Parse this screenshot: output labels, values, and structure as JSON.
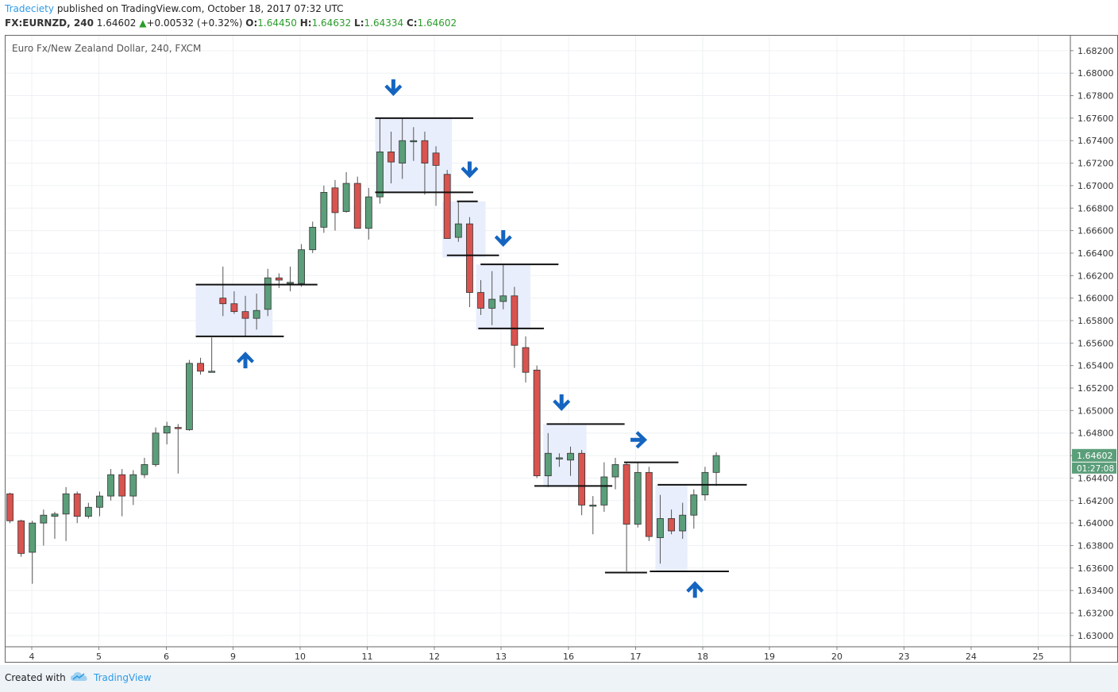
{
  "header": {
    "author": "Tradeciety",
    "published": "published on TradingView.com, October 18, 2017 07:32 UTC",
    "symbol": "FX:EURNZD, 240",
    "last": "1.64602",
    "change": "+0.00532 (+0.32%)",
    "o_label": "O:",
    "o": "1.64450",
    "h_label": "H:",
    "h": "1.64632",
    "l_label": "L:",
    "l": "1.64334",
    "c_label": "C:",
    "c": "1.64602"
  },
  "footer": {
    "created_with": "Created with",
    "brand": "TradingView",
    "logo_icon": "tradingview-cloud-icon"
  },
  "colors": {
    "up": "#5b9e7a",
    "down": "#d9534f",
    "arrow": "#1565c0",
    "zone": "#e8eefc",
    "price_tag": "#5b9e7a"
  },
  "chart_data": {
    "type": "candlestick",
    "title": "Euro Fx/New Zealand Dollar, 240, FXCM",
    "ylim": [
      1.629,
      1.6834
    ],
    "y_ticks": [
      "1.68200",
      "1.68000",
      "1.67800",
      "1.67600",
      "1.67400",
      "1.67200",
      "1.67000",
      "1.66800",
      "1.66600",
      "1.66400",
      "1.66200",
      "1.66000",
      "1.65800",
      "1.65600",
      "1.65400",
      "1.65200",
      "1.65000",
      "1.64800",
      "1.64600",
      "1.64400",
      "1.64200",
      "1.64000",
      "1.63800",
      "1.63600",
      "1.63400",
      "1.63200",
      "1.63000"
    ],
    "x_ticks": [
      "4",
      "5",
      "6",
      "9",
      "10",
      "11",
      "12",
      "13",
      "16",
      "17",
      "18",
      "19",
      "20",
      "23",
      "24",
      "25"
    ],
    "last_price": "1.64602",
    "countdown": "01:27:08",
    "candles": [
      {
        "o": 1.6426,
        "h": 1.6427,
        "l": 1.64,
        "c": 1.6402
      },
      {
        "o": 1.6402,
        "h": 1.6403,
        "l": 1.637,
        "c": 1.6373
      },
      {
        "o": 1.6374,
        "h": 1.6402,
        "l": 1.6346,
        "c": 1.64
      },
      {
        "o": 1.64,
        "h": 1.6412,
        "l": 1.638,
        "c": 1.6407
      },
      {
        "o": 1.6406,
        "h": 1.641,
        "l": 1.6386,
        "c": 1.6408
      },
      {
        "o": 1.6408,
        "h": 1.6432,
        "l": 1.6384,
        "c": 1.6426
      },
      {
        "o": 1.6426,
        "h": 1.6428,
        "l": 1.64,
        "c": 1.6406
      },
      {
        "o": 1.6406,
        "h": 1.6418,
        "l": 1.6404,
        "c": 1.6414
      },
      {
        "o": 1.6414,
        "h": 1.6428,
        "l": 1.6406,
        "c": 1.6424
      },
      {
        "o": 1.6424,
        "h": 1.6448,
        "l": 1.642,
        "c": 1.6443
      },
      {
        "o": 1.6443,
        "h": 1.6448,
        "l": 1.6406,
        "c": 1.6424
      },
      {
        "o": 1.6424,
        "h": 1.6447,
        "l": 1.6416,
        "c": 1.6443
      },
      {
        "o": 1.6443,
        "h": 1.6458,
        "l": 1.644,
        "c": 1.6452
      },
      {
        "o": 1.6452,
        "h": 1.6485,
        "l": 1.645,
        "c": 1.648
      },
      {
        "o": 1.648,
        "h": 1.649,
        "l": 1.647,
        "c": 1.6486
      },
      {
        "o": 1.6485,
        "h": 1.6488,
        "l": 1.6444,
        "c": 1.6484
      },
      {
        "o": 1.6483,
        "h": 1.6545,
        "l": 1.6482,
        "c": 1.6542
      },
      {
        "o": 1.6542,
        "h": 1.6547,
        "l": 1.6532,
        "c": 1.6535
      },
      {
        "o": 1.6535,
        "h": 1.6565,
        "l": 1.6535,
        "c": 1.6535
      },
      {
        "o": 1.66,
        "h": 1.6628,
        "l": 1.6584,
        "c": 1.6595
      },
      {
        "o": 1.6595,
        "h": 1.6606,
        "l": 1.6586,
        "c": 1.6588
      },
      {
        "o": 1.6588,
        "h": 1.6602,
        "l": 1.6566,
        "c": 1.6582
      },
      {
        "o": 1.6582,
        "h": 1.6604,
        "l": 1.6572,
        "c": 1.6589
      },
      {
        "o": 1.659,
        "h": 1.6626,
        "l": 1.6584,
        "c": 1.6618
      },
      {
        "o": 1.6618,
        "h": 1.6622,
        "l": 1.6609,
        "c": 1.6616
      },
      {
        "o": 1.6614,
        "h": 1.6628,
        "l": 1.6606,
        "c": 1.6614
      },
      {
        "o": 1.6613,
        "h": 1.6648,
        "l": 1.661,
        "c": 1.6643
      },
      {
        "o": 1.6643,
        "h": 1.6668,
        "l": 1.664,
        "c": 1.6663
      },
      {
        "o": 1.6663,
        "h": 1.67,
        "l": 1.6658,
        "c": 1.6694
      },
      {
        "o": 1.6698,
        "h": 1.6705,
        "l": 1.666,
        "c": 1.6676
      },
      {
        "o": 1.6677,
        "h": 1.6712,
        "l": 1.6676,
        "c": 1.6702
      },
      {
        "o": 1.6702,
        "h": 1.6708,
        "l": 1.6667,
        "c": 1.6662
      },
      {
        "o": 1.6662,
        "h": 1.6698,
        "l": 1.6652,
        "c": 1.669
      },
      {
        "o": 1.669,
        "h": 1.676,
        "l": 1.6684,
        "c": 1.673
      },
      {
        "o": 1.673,
        "h": 1.6748,
        "l": 1.6702,
        "c": 1.6721
      },
      {
        "o": 1.672,
        "h": 1.676,
        "l": 1.6706,
        "c": 1.674
      },
      {
        "o": 1.674,
        "h": 1.6752,
        "l": 1.6722,
        "c": 1.674
      },
      {
        "o": 1.674,
        "h": 1.6748,
        "l": 1.6692,
        "c": 1.672
      },
      {
        "o": 1.6729,
        "h": 1.6735,
        "l": 1.6682,
        "c": 1.6718
      },
      {
        "o": 1.671,
        "h": 1.6714,
        "l": 1.6654,
        "c": 1.6653
      },
      {
        "o": 1.6654,
        "h": 1.6686,
        "l": 1.665,
        "c": 1.6666
      },
      {
        "o": 1.6666,
        "h": 1.6672,
        "l": 1.6592,
        "c": 1.6605
      },
      {
        "o": 1.6605,
        "h": 1.6616,
        "l": 1.6585,
        "c": 1.6591
      },
      {
        "o": 1.6591,
        "h": 1.6624,
        "l": 1.6576,
        "c": 1.6599
      },
      {
        "o": 1.6597,
        "h": 1.663,
        "l": 1.659,
        "c": 1.6602
      },
      {
        "o": 1.6602,
        "h": 1.661,
        "l": 1.6538,
        "c": 1.6558
      },
      {
        "o": 1.6556,
        "h": 1.6566,
        "l": 1.6525,
        "c": 1.6534
      },
      {
        "o": 1.6536,
        "h": 1.654,
        "l": 1.644,
        "c": 1.6442
      },
      {
        "o": 1.6442,
        "h": 1.648,
        "l": 1.6432,
        "c": 1.6462
      },
      {
        "o": 1.6457,
        "h": 1.6462,
        "l": 1.645,
        "c": 1.6458
      },
      {
        "o": 1.6456,
        "h": 1.6468,
        "l": 1.6442,
        "c": 1.6462
      },
      {
        "o": 1.6462,
        "h": 1.6465,
        "l": 1.6407,
        "c": 1.6416
      },
      {
        "o": 1.6416,
        "h": 1.6424,
        "l": 1.639,
        "c": 1.6416
      },
      {
        "o": 1.6416,
        "h": 1.6454,
        "l": 1.641,
        "c": 1.6441
      },
      {
        "o": 1.6441,
        "h": 1.6458,
        "l": 1.643,
        "c": 1.6452
      },
      {
        "o": 1.6452,
        "h": 1.6454,
        "l": 1.6357,
        "c": 1.6399
      },
      {
        "o": 1.6399,
        "h": 1.6454,
        "l": 1.6396,
        "c": 1.6445
      },
      {
        "o": 1.6445,
        "h": 1.645,
        "l": 1.6384,
        "c": 1.6388
      },
      {
        "o": 1.6387,
        "h": 1.6425,
        "l": 1.6364,
        "c": 1.6404
      },
      {
        "o": 1.6404,
        "h": 1.6412,
        "l": 1.639,
        "c": 1.6393
      },
      {
        "o": 1.6393,
        "h": 1.6418,
        "l": 1.6386,
        "c": 1.6407
      },
      {
        "o": 1.6407,
        "h": 1.643,
        "l": 1.6395,
        "c": 1.6425
      },
      {
        "o": 1.6425,
        "h": 1.645,
        "l": 1.642,
        "c": 1.6445
      },
      {
        "o": 1.6445,
        "h": 1.6463,
        "l": 1.6433,
        "c": 1.646
      }
    ],
    "zones": [
      {
        "from": 17,
        "to": 23,
        "top": 1.6612,
        "bottom": 1.6566
      },
      {
        "from": 33,
        "to": 39,
        "top": 1.676,
        "bottom": 1.6694
      },
      {
        "from": 39,
        "to": 42,
        "top": 1.6686,
        "bottom": 1.6636
      },
      {
        "from": 42,
        "to": 46,
        "top": 1.663,
        "bottom": 1.6572
      },
      {
        "from": 48,
        "to": 51,
        "top": 1.6488,
        "bottom": 1.6432
      },
      {
        "from": 58,
        "to": 60,
        "top": 1.6434,
        "bottom": 1.6358
      }
    ],
    "levels": [
      {
        "from": 17,
        "to": 27,
        "y": 1.6612
      },
      {
        "from": 17,
        "to": 24,
        "y": 1.6566
      },
      {
        "from": 33,
        "to": 40.9,
        "y": 1.676
      },
      {
        "from": 33,
        "to": 40.9,
        "y": 1.6694
      },
      {
        "from": 40.3,
        "to": 41.3,
        "y": 1.6686
      },
      {
        "from": 39.4,
        "to": 43.2,
        "y": 1.6638
      },
      {
        "from": 42.4,
        "to": 48.5,
        "y": 1.663
      },
      {
        "from": 42.2,
        "to": 47.2,
        "y": 1.6573
      },
      {
        "from": 48.3,
        "to": 54.4,
        "y": 1.6488
      },
      {
        "from": 47.2,
        "to": 53.3,
        "y": 1.6433
      },
      {
        "from": 55.2,
        "to": 59.2,
        "y": 1.6454
      },
      {
        "from": 53.5,
        "to": 56.4,
        "y": 1.6356
      },
      {
        "from": 58.2,
        "to": 65.3,
        "y": 1.6434
      },
      {
        "from": 57.5,
        "to": 63.7,
        "y": 1.6357
      }
    ],
    "arrows": [
      {
        "dir": "up",
        "at": 21,
        "y": 1.6546
      },
      {
        "dir": "down",
        "at": 34.2,
        "y": 1.6786
      },
      {
        "dir": "down",
        "at": 41,
        "y": 1.6713
      },
      {
        "dir": "down",
        "at": 44,
        "y": 1.6652
      },
      {
        "dir": "down",
        "at": 49.2,
        "y": 1.6506
      },
      {
        "dir": "right",
        "at": 56.2,
        "y": 1.6474
      },
      {
        "dir": "up",
        "at": 61.1,
        "y": 1.6342
      }
    ]
  }
}
